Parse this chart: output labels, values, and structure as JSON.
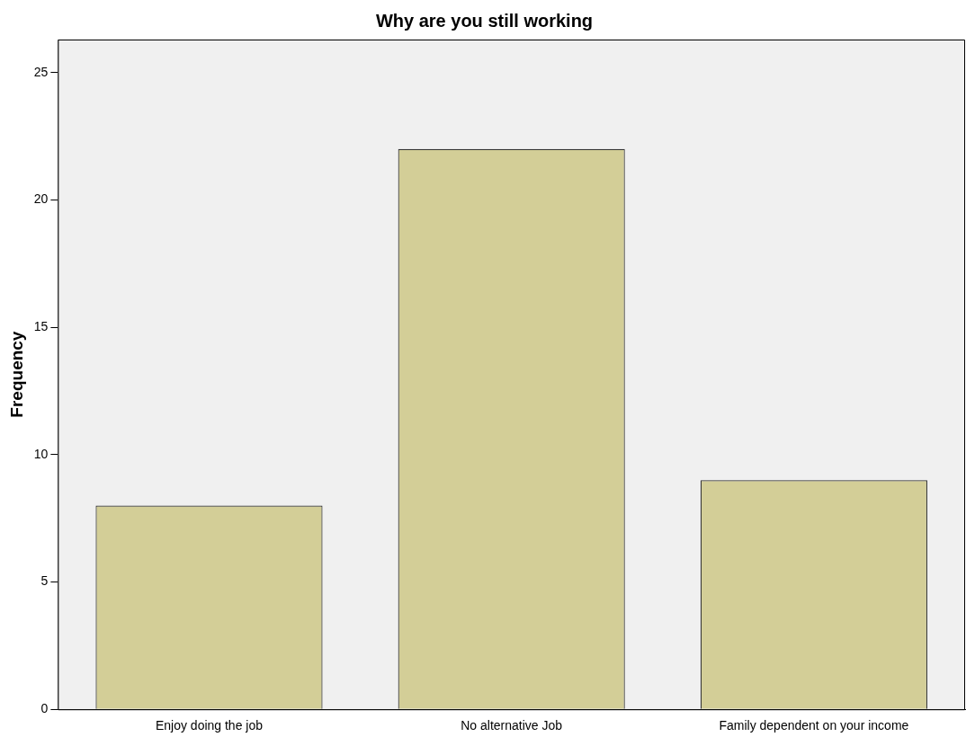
{
  "chart_data": {
    "type": "bar",
    "title": "Why are you still working",
    "ylabel": "Frequency",
    "categories": [
      "Enjoy doing the job",
      "No alternative Job",
      "Family dependent on your income"
    ],
    "values": [
      8,
      22,
      9
    ],
    "color": "#d3ce97",
    "ylim": [
      0,
      26.3
    ],
    "yticks": [
      0,
      5,
      10,
      15,
      20,
      25
    ],
    "grid": false,
    "legend": false
  }
}
